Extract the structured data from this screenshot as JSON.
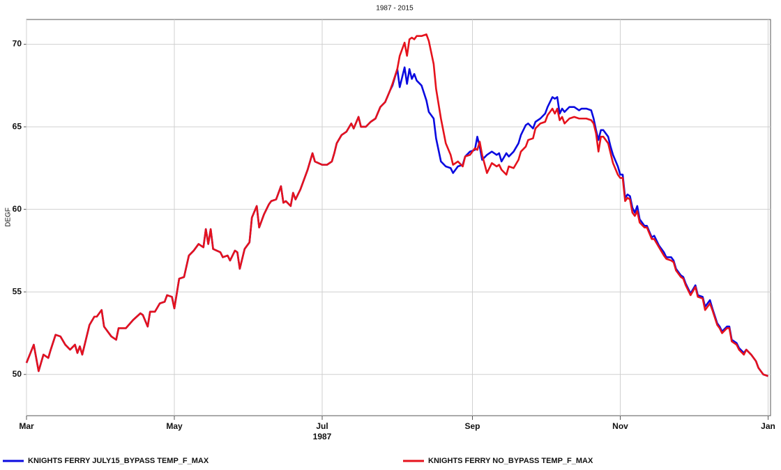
{
  "chart_data": {
    "type": "line",
    "title": "1987 - 2015",
    "y_label": "DEGF",
    "x_label": "1987",
    "xlim": [
      0,
      307
    ],
    "ylim": [
      47.5,
      71.5
    ],
    "xticks": [
      {
        "value": 0,
        "label": "Mar"
      },
      {
        "value": 61,
        "label": "May"
      },
      {
        "value": 122,
        "label": "Jul"
      },
      {
        "value": 184,
        "label": "Sep"
      },
      {
        "value": 245,
        "label": "Nov"
      },
      {
        "value": 306,
        "label": "Jan"
      }
    ],
    "yticks": [
      50,
      55,
      60,
      65,
      70
    ],
    "grid": true,
    "legend": "bottom",
    "x": [
      0,
      3,
      5,
      7,
      9,
      10,
      12,
      14,
      16,
      18,
      20,
      21,
      22,
      23,
      26,
      28,
      29,
      31,
      32,
      35,
      37,
      38,
      41,
      44,
      47,
      48,
      50,
      51,
      53,
      55,
      57,
      58,
      60,
      61,
      63,
      65,
      67,
      69,
      71,
      73,
      74,
      75,
      76,
      77,
      80,
      81,
      83,
      84,
      86,
      87,
      88,
      90,
      92,
      93,
      95,
      96,
      98,
      100,
      101,
      103,
      105,
      106,
      107,
      109,
      110,
      111,
      113,
      116,
      118,
      119,
      122,
      124,
      126,
      127,
      128,
      130,
      132,
      134,
      135,
      137,
      138,
      140,
      142,
      144,
      146,
      148,
      150,
      151,
      153,
      154,
      156,
      157,
      158,
      159,
      160,
      161,
      163,
      165,
      166,
      168,
      169,
      171,
      173,
      175,
      176,
      178,
      180,
      181,
      183,
      185,
      186,
      187,
      188,
      190,
      192,
      194,
      195,
      196,
      198,
      199,
      201,
      203,
      204,
      206,
      207,
      209,
      210,
      212,
      214,
      215,
      217,
      218,
      219,
      220,
      221,
      222,
      224,
      226,
      228,
      229,
      231,
      233,
      234,
      235,
      236,
      237,
      238,
      240,
      241,
      242,
      244,
      245,
      246,
      247,
      248,
      249,
      250,
      251,
      252,
      253,
      255,
      256,
      258,
      259,
      261,
      263,
      264,
      266,
      267,
      268,
      270,
      271,
      272,
      274,
      276,
      277,
      279,
      280,
      282,
      283,
      285,
      286,
      287,
      289,
      290,
      291,
      293,
      294,
      296,
      297,
      299,
      301,
      302,
      304,
      306
    ],
    "series": [
      {
        "name": "KNIGHTS FERRY JULY15_BYPASS TEMP_F_MAX",
        "color": "#0a0ae0",
        "values": [
          50.7,
          51.8,
          50.2,
          51.2,
          51.0,
          51.5,
          52.4,
          52.3,
          51.8,
          51.5,
          51.8,
          51.3,
          51.7,
          51.2,
          53.0,
          53.5,
          53.5,
          53.9,
          52.9,
          52.3,
          52.1,
          52.8,
          52.8,
          53.3,
          53.7,
          53.6,
          52.9,
          53.8,
          53.8,
          54.3,
          54.4,
          54.8,
          54.7,
          54.0,
          55.8,
          55.9,
          57.2,
          57.5,
          57.9,
          57.7,
          58.8,
          57.9,
          58.8,
          57.6,
          57.4,
          57.1,
          57.2,
          56.9,
          57.5,
          57.4,
          56.4,
          57.6,
          58.0,
          59.5,
          60.2,
          58.9,
          59.7,
          60.3,
          60.5,
          60.6,
          61.4,
          60.4,
          60.5,
          60.2,
          61.0,
          60.6,
          61.2,
          62.4,
          63.4,
          62.9,
          62.7,
          62.7,
          62.9,
          63.4,
          64.0,
          64.5,
          64.7,
          65.2,
          64.9,
          65.6,
          65.0,
          65.0,
          65.3,
          65.5,
          66.2,
          66.5,
          67.2,
          67.5,
          68.5,
          67.4,
          68.6,
          67.6,
          68.5,
          67.9,
          68.2,
          67.8,
          67.5,
          66.6,
          65.9,
          65.5,
          64.3,
          62.9,
          62.6,
          62.5,
          62.2,
          62.6,
          62.7,
          63.2,
          63.5,
          63.6,
          64.4,
          63.8,
          63.0,
          63.3,
          63.5,
          63.3,
          63.4,
          62.9,
          63.4,
          63.2,
          63.5,
          64.0,
          64.5,
          65.1,
          65.2,
          64.9,
          65.3,
          65.5,
          65.8,
          66.2,
          66.8,
          66.7,
          66.8,
          65.8,
          66.1,
          65.9,
          66.2,
          66.2,
          66.0,
          66.1,
          66.1,
          66.0,
          65.5,
          64.8,
          64.2,
          64.8,
          64.8,
          64.4,
          63.8,
          63.3,
          62.6,
          62.1,
          62.1,
          60.7,
          60.9,
          60.8,
          60.1,
          59.8,
          60.2,
          59.4,
          59.0,
          59.0,
          58.3,
          58.4,
          57.8,
          57.4,
          57.1,
          57.1,
          56.9,
          56.4,
          56.0,
          55.9,
          55.5,
          54.9,
          55.4,
          54.8,
          54.7,
          54.1,
          54.5,
          54.0,
          53.1,
          52.9,
          52.6,
          52.9,
          52.9,
          52.1,
          51.9,
          51.6,
          51.3,
          51.5,
          51.2,
          50.8,
          50.4,
          50.0,
          49.9
        ]
      },
      {
        "name": "KNIGHTS FERRY NO_BYPASS TEMP_F_MAX",
        "color": "#e5121c",
        "values": [
          50.7,
          51.8,
          50.2,
          51.2,
          51.0,
          51.5,
          52.4,
          52.3,
          51.8,
          51.5,
          51.8,
          51.3,
          51.7,
          51.2,
          53.0,
          53.5,
          53.5,
          53.9,
          52.9,
          52.3,
          52.1,
          52.8,
          52.8,
          53.3,
          53.7,
          53.6,
          52.9,
          53.8,
          53.8,
          54.3,
          54.4,
          54.8,
          54.7,
          54.0,
          55.8,
          55.9,
          57.2,
          57.5,
          57.9,
          57.7,
          58.8,
          57.9,
          58.8,
          57.6,
          57.4,
          57.1,
          57.2,
          56.9,
          57.5,
          57.4,
          56.4,
          57.6,
          58.0,
          59.5,
          60.2,
          58.9,
          59.7,
          60.3,
          60.5,
          60.6,
          61.4,
          60.4,
          60.5,
          60.2,
          61.0,
          60.6,
          61.2,
          62.4,
          63.4,
          62.9,
          62.7,
          62.7,
          62.9,
          63.4,
          64.0,
          64.5,
          64.7,
          65.2,
          64.9,
          65.6,
          65.0,
          65.0,
          65.3,
          65.5,
          66.2,
          66.5,
          67.2,
          67.6,
          68.5,
          69.3,
          70.1,
          69.3,
          70.3,
          70.4,
          70.3,
          70.5,
          70.5,
          70.6,
          70.2,
          68.8,
          67.3,
          65.5,
          64.0,
          63.3,
          62.7,
          62.9,
          62.6,
          63.2,
          63.3,
          63.7,
          63.6,
          64.1,
          63.3,
          62.2,
          62.8,
          62.6,
          62.7,
          62.4,
          62.1,
          62.6,
          62.5,
          63.0,
          63.5,
          63.8,
          64.2,
          64.3,
          64.9,
          65.2,
          65.3,
          65.7,
          66.1,
          65.8,
          66.1,
          65.4,
          65.6,
          65.2,
          65.5,
          65.6,
          65.5,
          65.5,
          65.5,
          65.4,
          65.2,
          64.6,
          63.5,
          64.4,
          64.4,
          64.0,
          63.4,
          62.8,
          62.1,
          61.9,
          61.9,
          60.5,
          60.7,
          60.6,
          59.8,
          59.6,
          59.9,
          59.2,
          58.9,
          58.9,
          58.2,
          58.2,
          57.7,
          57.2,
          57.0,
          56.9,
          56.8,
          56.3,
          55.9,
          55.8,
          55.4,
          54.8,
          55.3,
          54.7,
          54.6,
          53.9,
          54.3,
          53.9,
          53.0,
          52.8,
          52.5,
          52.8,
          52.8,
          52.0,
          51.8,
          51.5,
          51.2,
          51.5,
          51.2,
          50.8,
          50.4,
          50.0,
          49.9
        ]
      }
    ]
  }
}
